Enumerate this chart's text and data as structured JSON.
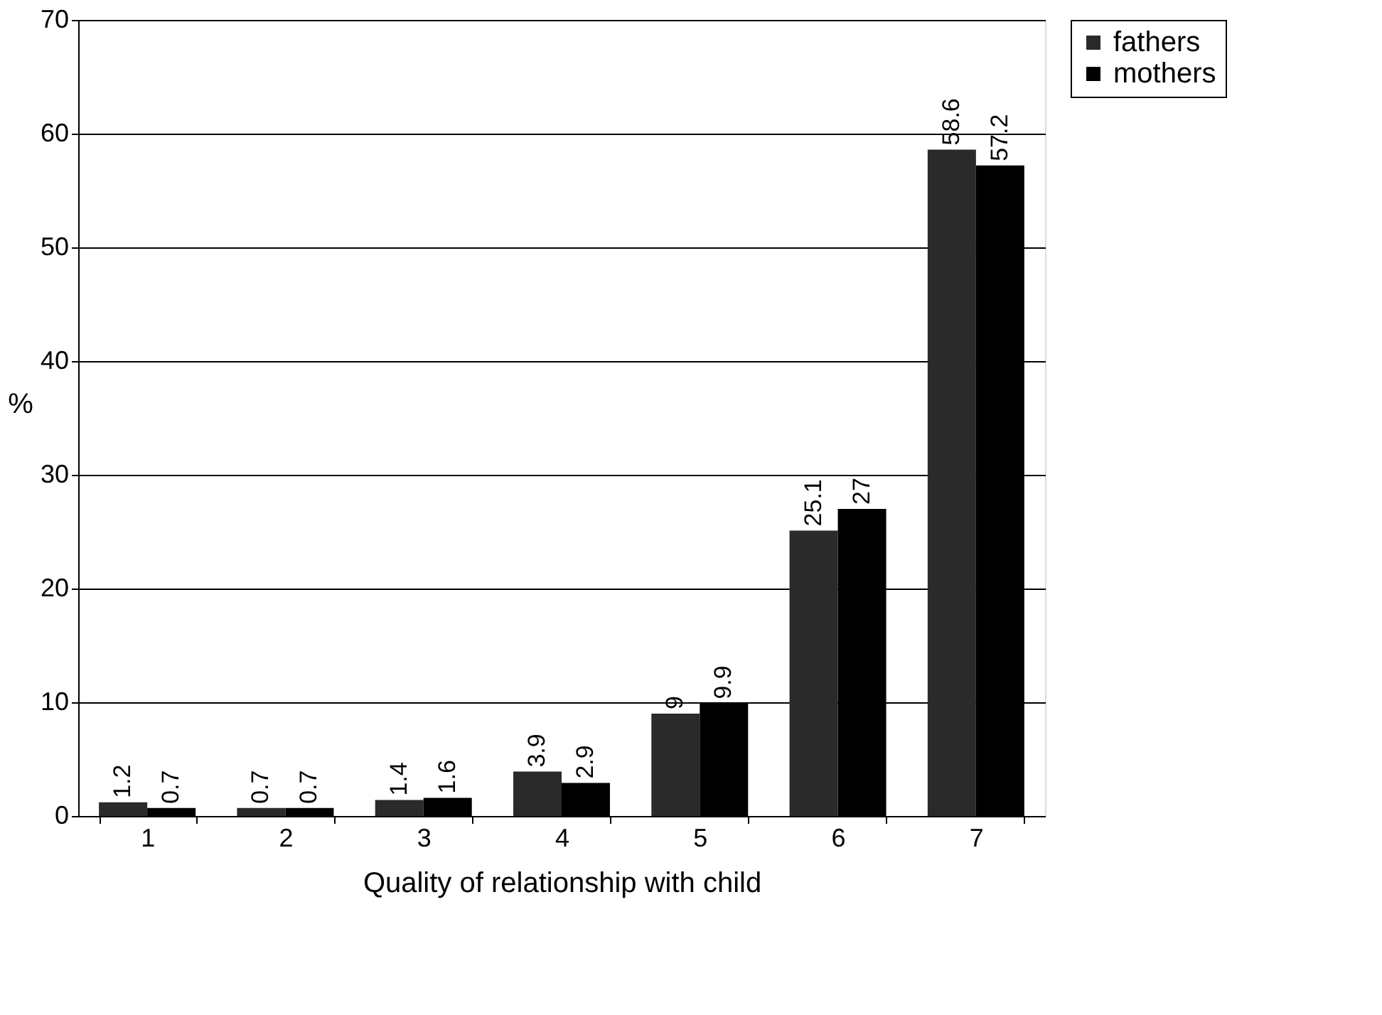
{
  "chart_data": {
    "type": "bar",
    "xlabel": "Quality of relationship with child",
    "ylabel": "%",
    "categories": [
      "1",
      "2",
      "3",
      "4",
      "5",
      "6",
      "7"
    ],
    "series": [
      {
        "name": "fathers",
        "color": "#2a2a2a",
        "values": [
          1.2,
          0.7,
          1.4,
          3.9,
          9,
          25.1,
          58.6
        ]
      },
      {
        "name": "mothers",
        "color": "#000000",
        "values": [
          0.7,
          0.7,
          1.6,
          2.9,
          9.9,
          27,
          57.2
        ]
      }
    ],
    "ylim": [
      0,
      70
    ],
    "yticks": [
      0,
      10,
      20,
      30,
      40,
      50,
      60,
      70
    ],
    "grid": "y",
    "legend": "right",
    "data_labels": true
  }
}
